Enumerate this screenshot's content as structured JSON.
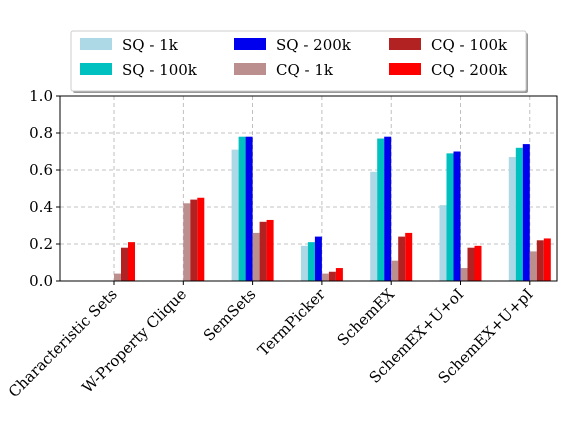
{
  "chart_data": {
    "type": "bar",
    "categories": [
      "Characteristic Sets",
      "W-Property Clique",
      "SemSets",
      "TermPicker",
      "SchemEX",
      "SchemEX+U+oI",
      "SchemEX+U+pI"
    ],
    "series": [
      {
        "name": "SQ - 1k",
        "color": "#add8e6",
        "values": [
          0,
          0,
          0.71,
          0.19,
          0.59,
          0.41,
          0.67
        ]
      },
      {
        "name": "SQ - 100k",
        "color": "#00c0c0",
        "values": [
          0,
          0,
          0.78,
          0.21,
          0.77,
          0.69,
          0.72
        ]
      },
      {
        "name": "SQ - 200k",
        "color": "#0000ee",
        "values": [
          0,
          0,
          0.78,
          0.24,
          0.78,
          0.7,
          0.74
        ]
      },
      {
        "name": "CQ - 1k",
        "color": "#bc8f8f",
        "values": [
          0.04,
          0.42,
          0.26,
          0.04,
          0.11,
          0.07,
          0.16
        ]
      },
      {
        "name": "CQ - 100k",
        "color": "#b22222",
        "values": [
          0.18,
          0.44,
          0.32,
          0.05,
          0.24,
          0.18,
          0.22
        ]
      },
      {
        "name": "CQ - 200k",
        "color": "#ff0000",
        "values": [
          0.21,
          0.45,
          0.33,
          0.07,
          0.26,
          0.19,
          0.23
        ]
      }
    ],
    "yticks": [
      "0.0",
      "0.2",
      "0.4",
      "0.6",
      "0.8",
      "1.0"
    ],
    "ylim": [
      0,
      1.0
    ],
    "title": "",
    "xlabel": "",
    "ylabel": "",
    "grid": true,
    "legend": "top-center"
  }
}
